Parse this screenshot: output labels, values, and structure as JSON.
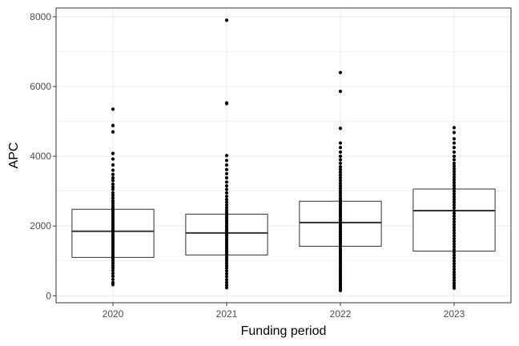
{
  "chart_data": {
    "type": "boxplot",
    "xlabel": "Funding period",
    "ylabel": "APC",
    "categories": [
      "2020",
      "2021",
      "2022",
      "2023"
    ],
    "ylim": [
      -200,
      8250
    ],
    "yticks": [
      0,
      2000,
      4000,
      6000,
      8000
    ],
    "grid": true,
    "legend": "none",
    "colors": {
      "box_fill": "#ffffff",
      "box_stroke": "#333333",
      "point": "#000000",
      "grid": "#ebebeb",
      "panel_border": "#333333"
    },
    "boxes": [
      {
        "category": "2020",
        "q1": 1100,
        "median": 1850,
        "q3": 2480
      },
      {
        "category": "2021",
        "q1": 1170,
        "median": 1800,
        "q3": 2340
      },
      {
        "category": "2022",
        "q1": 1420,
        "median": 2100,
        "q3": 2710
      },
      {
        "category": "2023",
        "q1": 1280,
        "median": 2440,
        "q3": 3060
      }
    ],
    "points": [
      {
        "category": "2020",
        "values": [
          5350,
          4880,
          4700,
          4080,
          3920,
          3750,
          3600,
          3480,
          3380,
          3300,
          3200,
          3120,
          3050,
          2950,
          2880,
          2800,
          2720,
          2650,
          2580,
          2520,
          2450,
          2400,
          2340,
          2280,
          2220,
          2160,
          2100,
          2040,
          1980,
          1920,
          1870,
          1820,
          1760,
          1700,
          1650,
          1590,
          1540,
          1480,
          1420,
          1360,
          1300,
          1240,
          1180,
          1120,
          1060,
          1000,
          930,
          860,
          790,
          720,
          640,
          560,
          470,
          380,
          320
        ]
      },
      {
        "category": "2021",
        "values": [
          7900,
          5530,
          5510,
          4020,
          3880,
          3750,
          3620,
          3500,
          3380,
          3260,
          3150,
          3050,
          2950,
          2850,
          2760,
          2680,
          2600,
          2520,
          2450,
          2380,
          2310,
          2250,
          2190,
          2130,
          2070,
          2010,
          1950,
          1890,
          1840,
          1780,
          1720,
          1660,
          1600,
          1540,
          1480,
          1420,
          1360,
          1300,
          1240,
          1180,
          1120,
          1060,
          1000,
          930,
          860,
          790,
          710,
          630,
          550,
          460,
          380,
          300,
          230
        ]
      },
      {
        "category": "2022",
        "values": [
          6400,
          5860,
          4800,
          4380,
          4250,
          4120,
          4000,
          3900,
          3800,
          3700,
          3620,
          3540,
          3460,
          3380,
          3300,
          3220,
          3150,
          3080,
          3010,
          2940,
          2870,
          2800,
          2740,
          2680,
          2620,
          2560,
          2500,
          2440,
          2380,
          2320,
          2260,
          2200,
          2150,
          2100,
          2050,
          2000,
          1940,
          1880,
          1820,
          1760,
          1700,
          1640,
          1580,
          1520,
          1460,
          1400,
          1340,
          1280,
          1220,
          1160,
          1100,
          1040,
          980,
          920,
          860,
          800,
          740,
          680,
          620,
          560,
          500,
          440,
          380,
          320,
          260,
          200,
          150
        ]
      },
      {
        "category": "2023",
        "values": [
          4820,
          4680,
          4500,
          4380,
          4250,
          4120,
          4000,
          3900,
          3800,
          3720,
          3640,
          3560,
          3480,
          3400,
          3320,
          3240,
          3160,
          3080,
          3000,
          2920,
          2840,
          2760,
          2680,
          2600,
          2520,
          2440,
          2360,
          2280,
          2200,
          2120,
          2040,
          1960,
          1880,
          1800,
          1720,
          1640,
          1560,
          1480,
          1400,
          1320,
          1240,
          1160,
          1080,
          1000,
          920,
          840,
          760,
          680,
          600,
          520,
          440,
          360,
          290,
          220
        ]
      }
    ]
  }
}
